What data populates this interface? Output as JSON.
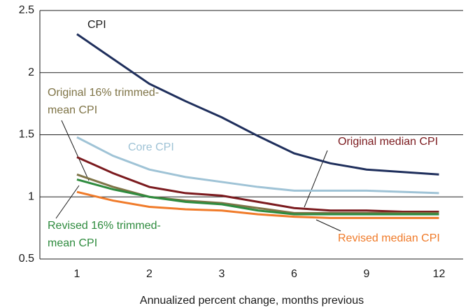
{
  "chart_data": {
    "type": "line",
    "x_label": "Annualized percent change, months previous",
    "categories": [
      "1",
      null,
      "2",
      null,
      "3",
      null,
      "6",
      null,
      "9",
      null,
      "12"
    ],
    "ylim": [
      0.5,
      2.5
    ],
    "yticks": [
      0.5,
      1,
      1.5,
      2,
      2.5
    ],
    "grid": true,
    "series": [
      {
        "name": "CPI",
        "color": "#1f2f5c",
        "values": [
          2.31,
          2.11,
          1.91,
          1.77,
          1.64,
          1.49,
          1.35,
          1.27,
          1.22,
          1.2,
          1.18
        ]
      },
      {
        "name": "Core CPI",
        "color": "#9fc3d6",
        "values": [
          1.48,
          1.33,
          1.22,
          1.16,
          1.12,
          1.08,
          1.05,
          1.05,
          1.05,
          1.04,
          1.03
        ]
      },
      {
        "name": "Original median CPI",
        "color": "#7b1a1e",
        "values": [
          1.32,
          1.19,
          1.08,
          1.03,
          1.01,
          0.96,
          0.91,
          0.89,
          0.89,
          0.88,
          0.88
        ]
      },
      {
        "name": "Original 16% trimmed-mean CPI",
        "color": "#7f7447",
        "values": [
          1.18,
          1.08,
          1.0,
          0.97,
          0.95,
          0.91,
          0.87,
          0.87,
          0.87,
          0.87,
          0.87
        ]
      },
      {
        "name": "Revised 16% trimmed-mean CPI",
        "color": "#2e8b3e",
        "values": [
          1.14,
          1.06,
          1.0,
          0.96,
          0.94,
          0.89,
          0.86,
          0.86,
          0.86,
          0.86,
          0.86
        ]
      },
      {
        "name": "Revised median CPI",
        "color": "#f07b2a",
        "values": [
          1.04,
          0.97,
          0.92,
          0.9,
          0.89,
          0.86,
          0.84,
          0.83,
          0.83,
          0.83,
          0.83
        ]
      }
    ]
  }
}
